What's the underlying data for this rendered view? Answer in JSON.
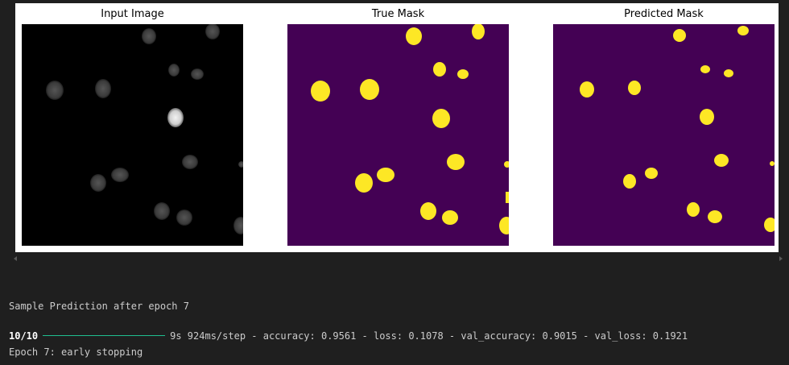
{
  "figure": {
    "panels": [
      {
        "id": "input",
        "title": "Input Image"
      },
      {
        "id": "true",
        "title": "True Mask"
      },
      {
        "id": "pred",
        "title": "Predicted Mask"
      }
    ],
    "colors": {
      "background_mask": "#440154",
      "foreground_mask": "#fde725",
      "input_background": "#000000"
    }
  },
  "output": {
    "sample_line": "Sample Prediction after epoch 7",
    "progress": {
      "steps": "10/10",
      "fraction_complete": 1.0,
      "bar_color": "#1fbf8f",
      "metrics": "9s 924ms/step - accuracy: 0.9561 - loss: 0.1078 - val_accuracy: 0.9015 - val_loss: 0.1921"
    },
    "early_stop_line": "Epoch 7: early stopping"
  }
}
